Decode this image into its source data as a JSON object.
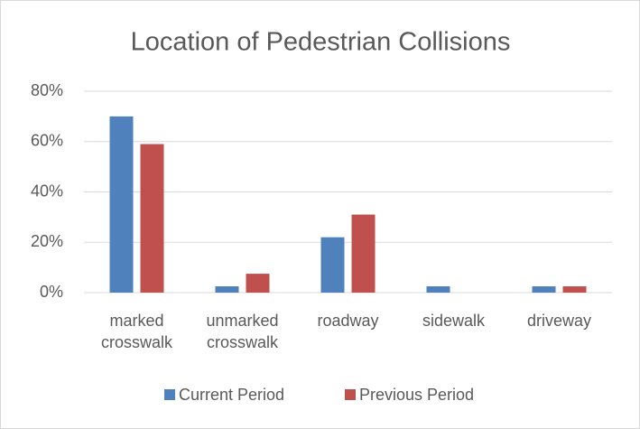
{
  "chart_data": {
    "type": "bar",
    "title": "Location of Pedestrian Collisions",
    "categories": [
      "marked crosswalk",
      "unmarked crosswalk",
      "roadway",
      "sidewalk",
      "driveway"
    ],
    "series": [
      {
        "name": "Current Period",
        "color": "#4f81bd",
        "values": [
          70,
          2.5,
          22,
          2.5,
          2.5
        ]
      },
      {
        "name": "Previous Period",
        "color": "#c0504d",
        "values": [
          59,
          7.5,
          31,
          0,
          2.5
        ]
      }
    ],
    "ylim": [
      0,
      80
    ],
    "yticks": [
      {
        "value": 0,
        "label": "0%"
      },
      {
        "value": 20,
        "label": "20%"
      },
      {
        "value": 40,
        "label": "40%"
      },
      {
        "value": 60,
        "label": "60%"
      },
      {
        "value": 80,
        "label": "80%"
      }
    ],
    "grid": true,
    "legend": "bottom"
  }
}
